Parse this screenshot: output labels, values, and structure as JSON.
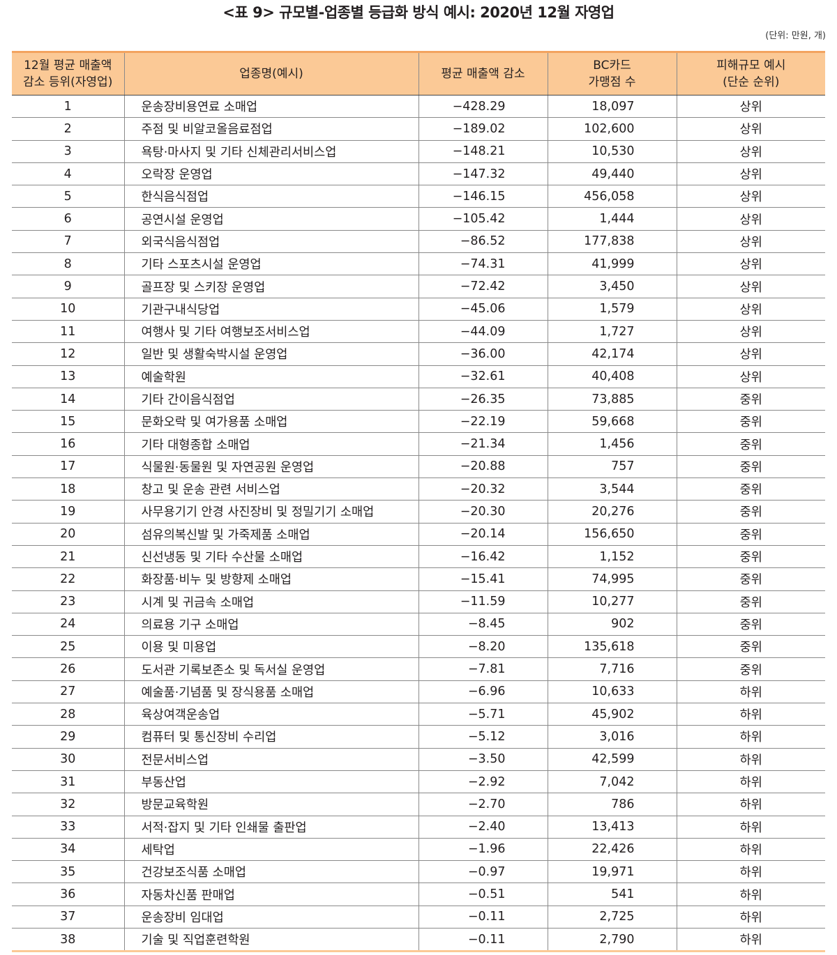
{
  "title": "<표 9> 규모별-업종별 등급화 방식 예시: 2020년 12월 자영업",
  "unit": "(단위: 만원, 개)",
  "headers": [
    "12월 평균 매출액\n감소 등위(자영업)",
    "업종명(예시)",
    "평균 매출액 감소",
    "BC카드\n가맹점 수",
    "피해규모 예시\n(단순 순위)"
  ],
  "rows": [
    [
      "1",
      "운송장비용연료 소매업",
      "−428.29",
      "18,097",
      "상위"
    ],
    [
      "2",
      "주점 및 비알코올음료점업",
      "−189.02",
      "102,600",
      "상위"
    ],
    [
      "3",
      "욕탕·마사지 및 기타 신체관리서비스업",
      "−148.21",
      "10,530",
      "상위"
    ],
    [
      "4",
      "오락장 운영업",
      "−147.32",
      "49,440",
      "상위"
    ],
    [
      "5",
      "한식음식점업",
      "−146.15",
      "456,058",
      "상위"
    ],
    [
      "6",
      "공연시설 운영업",
      "−105.42",
      "1,444",
      "상위"
    ],
    [
      "7",
      "외국식음식점업",
      "−86.52",
      "177,838",
      "상위"
    ],
    [
      "8",
      "기타 스포츠시설 운영업",
      "−74.31",
      "41,999",
      "상위"
    ],
    [
      "9",
      "골프장 및 스키장 운영업",
      "−72.42",
      "3,450",
      "상위"
    ],
    [
      "10",
      "기관구내식당업",
      "−45.06",
      "1,579",
      "상위"
    ],
    [
      "11",
      "여행사 및 기타 여행보조서비스업",
      "−44.09",
      "1,727",
      "상위"
    ],
    [
      "12",
      "일반 및 생활숙박시설 운영업",
      "−36.00",
      "42,174",
      "상위"
    ],
    [
      "13",
      "예술학원",
      "−32.61",
      "40,408",
      "상위"
    ],
    [
      "14",
      "기타 간이음식점업",
      "−26.35",
      "73,885",
      "중위"
    ],
    [
      "15",
      "문화오락 및 여가용품 소매업",
      "−22.19",
      "59,668",
      "중위"
    ],
    [
      "16",
      "기타 대형종합 소매업",
      "−21.34",
      "1,456",
      "중위"
    ],
    [
      "17",
      "식물원·동물원 및 자연공원 운영업",
      "−20.88",
      "757",
      "중위"
    ],
    [
      "18",
      "창고 및 운송 관련 서비스업",
      "−20.32",
      "3,544",
      "중위"
    ],
    [
      "19",
      "사무용기기 안경 사진장비 및 정밀기기 소매업",
      "−20.30",
      "20,276",
      "중위"
    ],
    [
      "20",
      "섬유의복신발 및 가죽제품 소매업",
      "−20.14",
      "156,650",
      "중위"
    ],
    [
      "21",
      "신선냉동 및 기타 수산물 소매업",
      "−16.42",
      "1,152",
      "중위"
    ],
    [
      "22",
      "화장품·비누 및 방향제 소매업",
      "−15.41",
      "74,995",
      "중위"
    ],
    [
      "23",
      "시계 및 귀금속 소매업",
      "−11.59",
      "10,277",
      "중위"
    ],
    [
      "24",
      "의료용 기구 소매업",
      "−8.45",
      "902",
      "중위"
    ],
    [
      "25",
      "이용 및 미용업",
      "−8.20",
      "135,618",
      "중위"
    ],
    [
      "26",
      "도서관 기록보존소 및 독서실 운영업",
      "−7.81",
      "7,716",
      "중위"
    ],
    [
      "27",
      "예술품·기념품 및 장식용품 소매업",
      "−6.96",
      "10,633",
      "하위"
    ],
    [
      "28",
      "육상여객운송업",
      "−5.71",
      "45,902",
      "하위"
    ],
    [
      "29",
      "컴퓨터 및 통신장비 수리업",
      "−5.12",
      "3,016",
      "하위"
    ],
    [
      "30",
      "전문서비스업",
      "−3.50",
      "42,599",
      "하위"
    ],
    [
      "31",
      "부동산업",
      "−2.92",
      "7,042",
      "하위"
    ],
    [
      "32",
      "방문교육학원",
      "−2.70",
      "786",
      "하위"
    ],
    [
      "33",
      "서적·잡지 및 기타 인쇄물 출판업",
      "−2.40",
      "13,413",
      "하위"
    ],
    [
      "34",
      "세탁업",
      "−1.96",
      "22,426",
      "하위"
    ],
    [
      "35",
      "건강보조식품 소매업",
      "−0.97",
      "19,971",
      "하위"
    ],
    [
      "36",
      "자동차신품 판매업",
      "−0.51",
      "541",
      "하위"
    ],
    [
      "37",
      "운송장비 임대업",
      "−0.11",
      "2,725",
      "하위"
    ],
    [
      "38",
      "기술 및 직업훈련학원",
      "−0.11",
      "2,790",
      "하위"
    ]
  ]
}
